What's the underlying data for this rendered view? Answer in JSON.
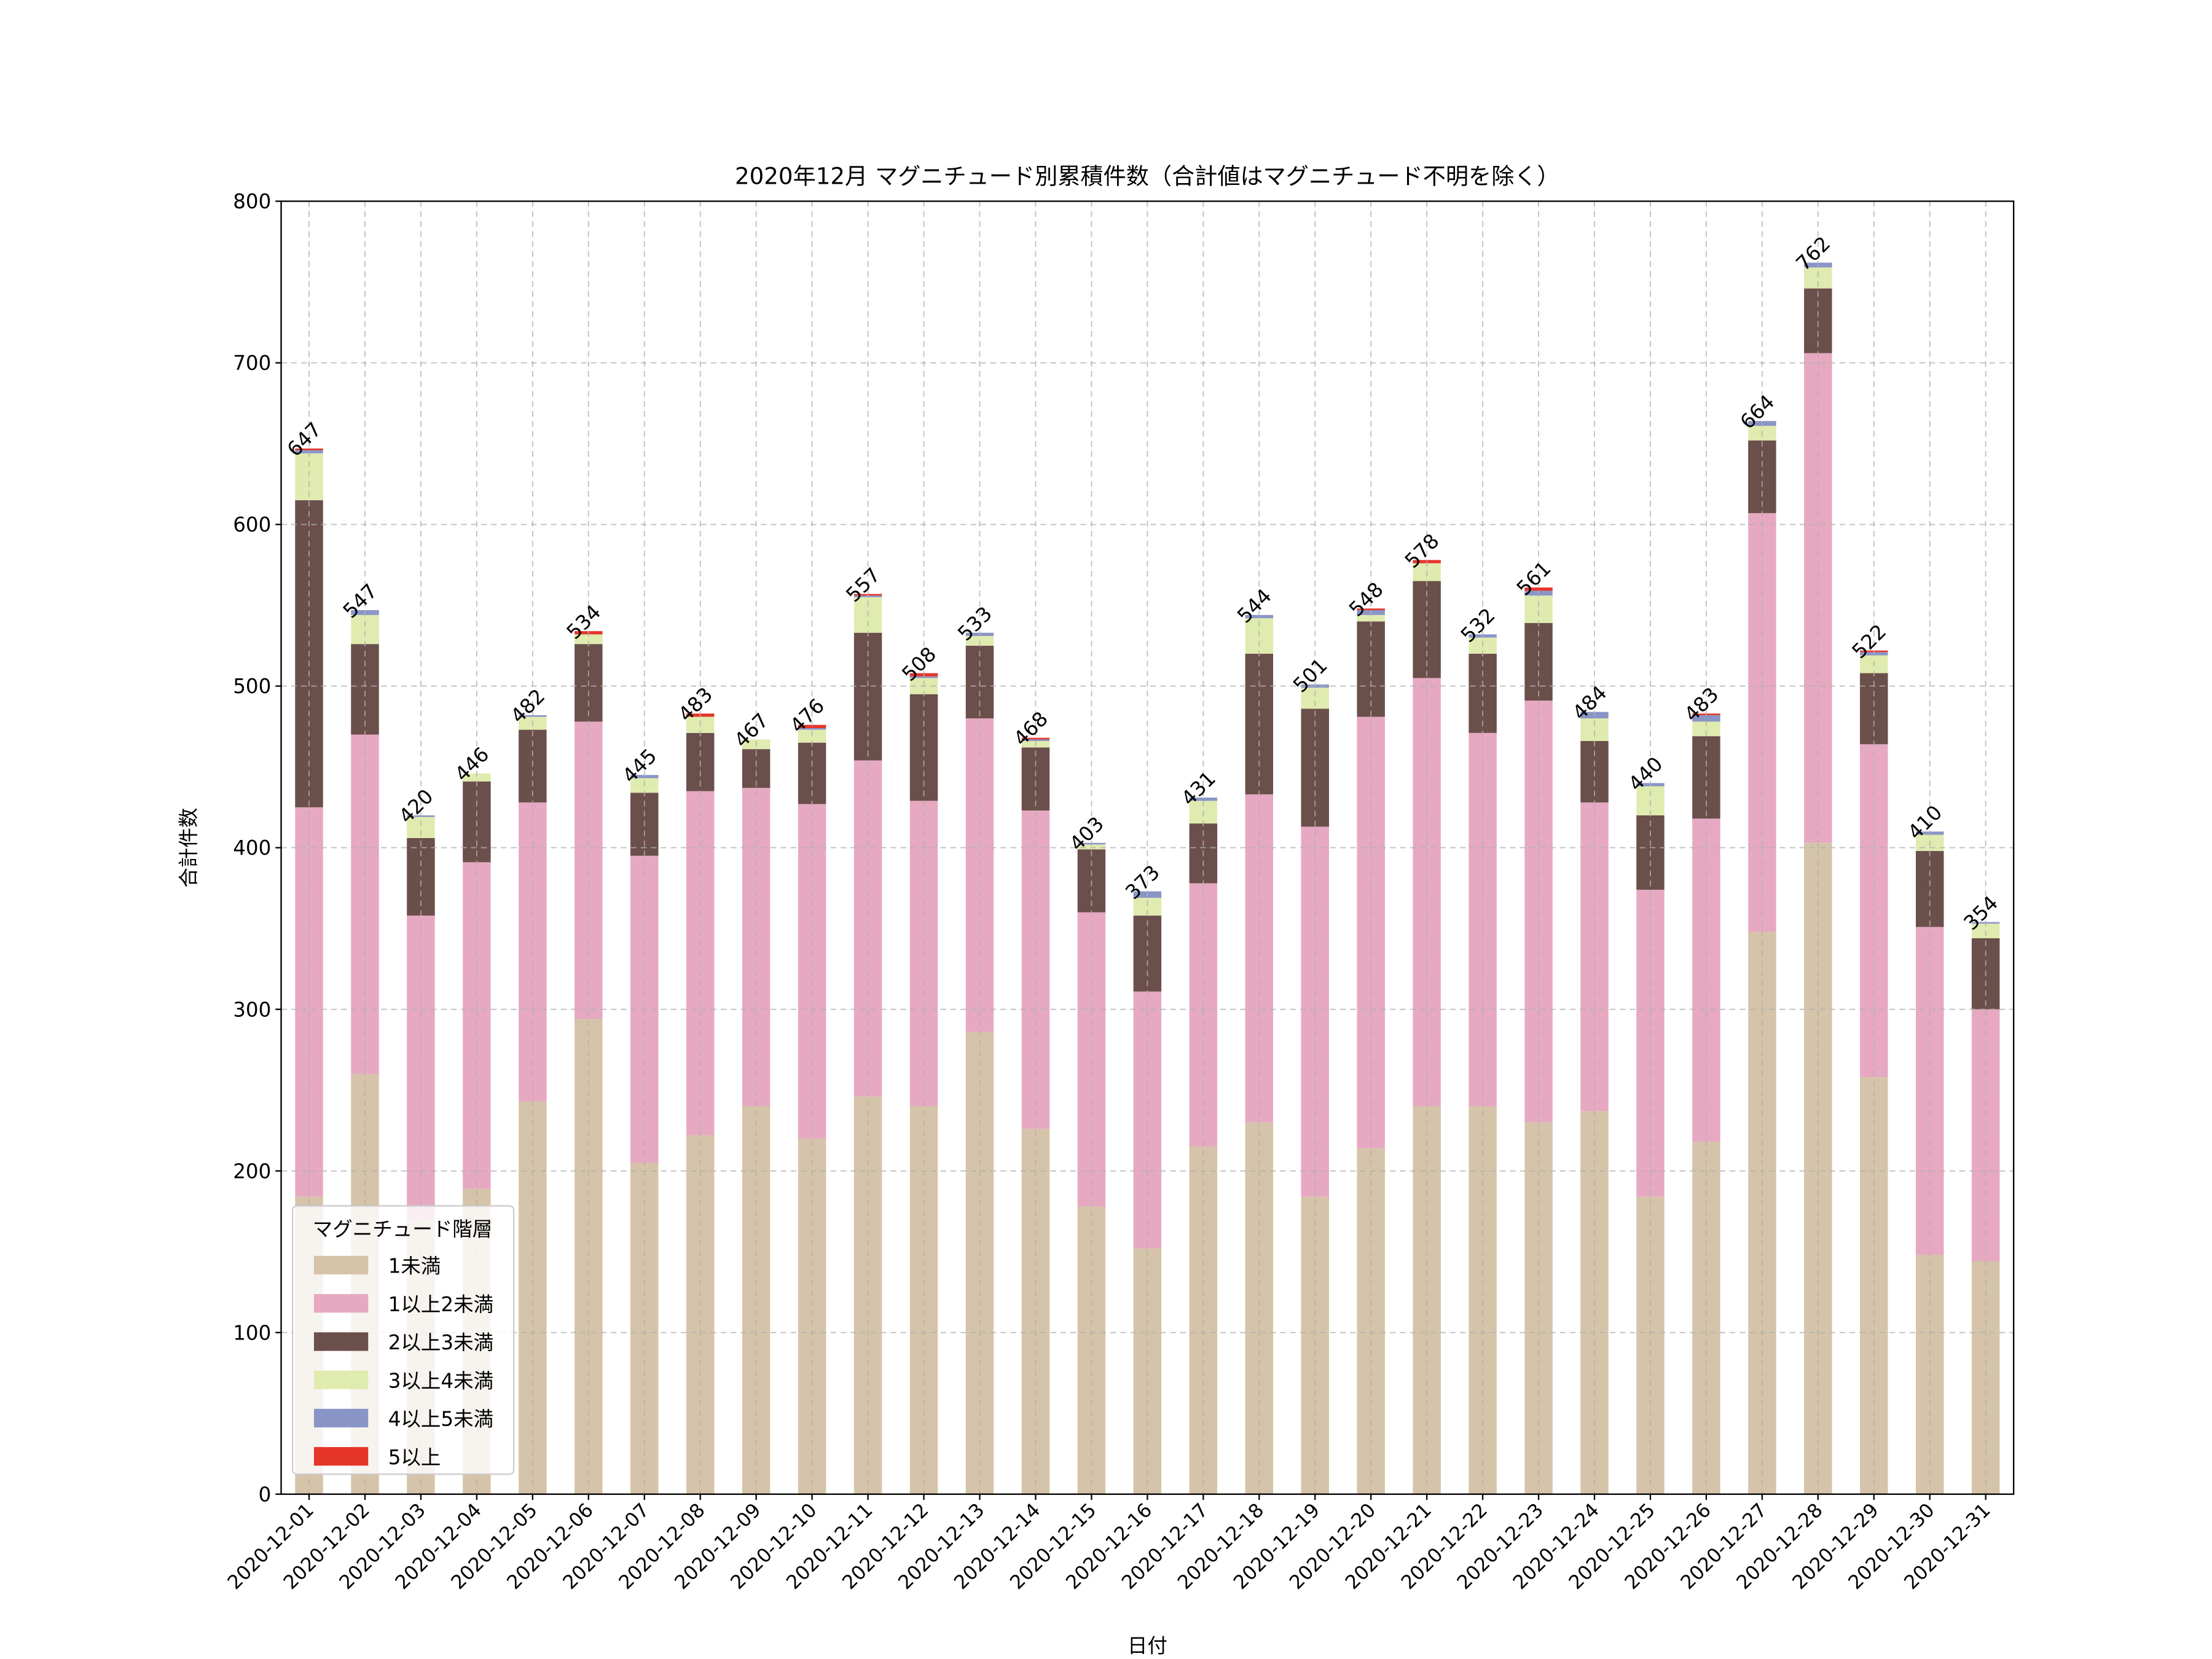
{
  "chart_data": {
    "type": "bar",
    "stacked": true,
    "title": "2020年12月 マグニチュード別累積件数（合計値はマグニチュード不明を除く）",
    "xlabel": "日付",
    "ylabel": "合計件数",
    "ylim": [
      0,
      800
    ],
    "yticks": [
      0,
      100,
      200,
      300,
      400,
      500,
      600,
      700,
      800
    ],
    "grid": true,
    "legend": {
      "title": "マグニチュード階層",
      "placement": "lower-left"
    },
    "categories": [
      "2020-12-01",
      "2020-12-02",
      "2020-12-03",
      "2020-12-04",
      "2020-12-05",
      "2020-12-06",
      "2020-12-07",
      "2020-12-08",
      "2020-12-09",
      "2020-12-10",
      "2020-12-11",
      "2020-12-12",
      "2020-12-13",
      "2020-12-14",
      "2020-12-15",
      "2020-12-16",
      "2020-12-17",
      "2020-12-18",
      "2020-12-19",
      "2020-12-20",
      "2020-12-21",
      "2020-12-22",
      "2020-12-23",
      "2020-12-24",
      "2020-12-25",
      "2020-12-26",
      "2020-12-27",
      "2020-12-28",
      "2020-12-29",
      "2020-12-30",
      "2020-12-31"
    ],
    "totals": [
      647,
      547,
      420,
      446,
      482,
      534,
      445,
      483,
      467,
      476,
      557,
      508,
      533,
      468,
      403,
      373,
      431,
      544,
      501,
      548,
      578,
      532,
      561,
      484,
      440,
      483,
      664,
      762,
      522,
      410,
      354
    ],
    "series": [
      {
        "name": "1未満",
        "color": "#d5c4a9",
        "values": [
          184,
          260,
          170,
          189,
          243,
          294,
          205,
          222,
          240,
          220,
          246,
          240,
          286,
          226,
          178,
          152,
          215,
          230,
          184,
          214,
          240,
          240,
          230,
          237,
          184,
          218,
          348,
          403,
          258,
          148,
          144
        ]
      },
      {
        "name": "1以上2未満",
        "color": "#e6a9c1",
        "values": [
          241,
          210,
          188,
          202,
          185,
          184,
          190,
          213,
          197,
          207,
          208,
          189,
          194,
          197,
          182,
          159,
          163,
          203,
          229,
          267,
          265,
          231,
          261,
          191,
          190,
          200,
          259,
          303,
          206,
          203,
          156
        ]
      },
      {
        "name": "2以上3未満",
        "color": "#6b4f4b",
        "values": [
          190,
          56,
          48,
          50,
          45,
          48,
          39,
          36,
          24,
          38,
          79,
          66,
          45,
          39,
          39,
          47,
          37,
          87,
          73,
          59,
          60,
          49,
          48,
          38,
          46,
          51,
          45,
          40,
          44,
          47,
          44
        ]
      },
      {
        "name": "3以上4未満",
        "color": "#e0ebaf",
        "values": [
          29,
          18,
          13,
          5,
          8,
          6,
          9,
          10,
          6,
          8,
          22,
          10,
          6,
          4,
          3,
          11,
          14,
          22,
          13,
          4,
          11,
          10,
          17,
          14,
          18,
          9,
          9,
          13,
          11,
          10,
          9
        ]
      },
      {
        "name": "4以上5未満",
        "color": "#8a95c7",
        "values": [
          2,
          3,
          1,
          0,
          1,
          0,
          2,
          0,
          0,
          1,
          1,
          1,
          2,
          1,
          1,
          4,
          2,
          2,
          2,
          3,
          0,
          2,
          3,
          4,
          2,
          4,
          3,
          3,
          2,
          2,
          1
        ]
      },
      {
        "name": "5以上",
        "color": "#e5352b",
        "values": [
          1,
          0,
          0,
          0,
          0,
          2,
          0,
          2,
          0,
          2,
          1,
          2,
          0,
          1,
          0,
          0,
          0,
          0,
          0,
          1,
          2,
          0,
          2,
          0,
          0,
          1,
          0,
          0,
          1,
          0,
          0
        ]
      }
    ]
  }
}
